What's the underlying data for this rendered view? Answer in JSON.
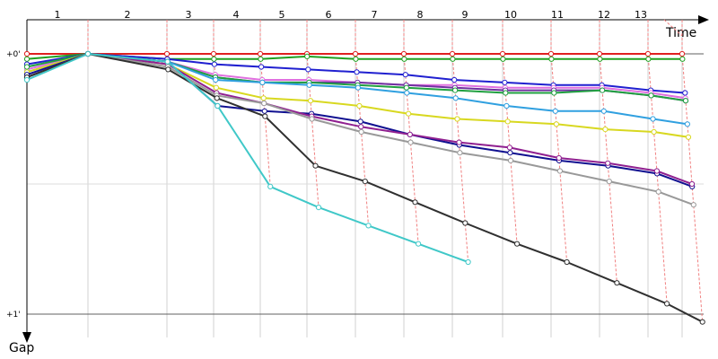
{
  "chart_data": {
    "type": "line",
    "title": "",
    "xlabel": "Time",
    "ylabel": "Gap",
    "lap_labels": [
      "1",
      "2",
      "3",
      "4",
      "5",
      "6",
      "7",
      "8",
      "9",
      "10",
      "11",
      "12",
      "13"
    ],
    "y_tick_labels": [
      "+0'",
      "+1'"
    ],
    "ylim": [
      0,
      1.035
    ],
    "grid": true,
    "laps": [
      0,
      1,
      2,
      3,
      4,
      5,
      6,
      7,
      8,
      9,
      10,
      11,
      12,
      13
    ],
    "series": [
      {
        "color": "#e02020",
        "values": [
          0.0,
          0.0,
          0.0,
          0.0,
          0.0,
          0.0,
          0.0,
          0.0,
          0.0,
          0.0,
          0.0,
          0.0,
          0.0,
          0.0
        ]
      },
      {
        "color": "#20a020",
        "values": [
          0.02,
          0.0,
          0.02,
          0.02,
          0.02,
          0.01,
          0.02,
          0.02,
          0.02,
          0.02,
          0.02,
          0.02,
          0.02,
          0.02
        ]
      },
      {
        "color": "#2020d0",
        "values": [
          0.04,
          0.0,
          0.02,
          0.04,
          0.05,
          0.06,
          0.07,
          0.08,
          0.1,
          0.11,
          0.12,
          0.12,
          0.14,
          0.15
        ]
      },
      {
        "color": "#e070e0",
        "values": [
          0.06,
          0.0,
          0.03,
          0.08,
          0.1,
          0.1,
          0.11,
          0.12,
          0.12,
          0.13,
          0.13,
          0.13,
          0.15,
          0.17
        ]
      },
      {
        "color": "#7030a0",
        "values": [
          0.09,
          0.0,
          0.03,
          0.09,
          0.11,
          0.11,
          0.11,
          0.12,
          0.13,
          0.14,
          0.14,
          0.14,
          0.16,
          0.18
        ]
      },
      {
        "color": "#20a040",
        "values": [
          0.05,
          0.0,
          0.03,
          0.09,
          0.11,
          0.11,
          0.12,
          0.13,
          0.14,
          0.15,
          0.15,
          0.14,
          0.16,
          0.18
        ]
      },
      {
        "color": "#30a0e0",
        "values": [
          0.07,
          0.0,
          0.03,
          0.1,
          0.11,
          0.12,
          0.13,
          0.15,
          0.17,
          0.2,
          0.22,
          0.22,
          0.25,
          0.27
        ]
      },
      {
        "color": "#d8d820",
        "values": [
          0.07,
          0.0,
          0.04,
          0.13,
          0.17,
          0.18,
          0.2,
          0.23,
          0.25,
          0.26,
          0.27,
          0.29,
          0.3,
          0.32
        ]
      },
      {
        "color": "#101090",
        "values": [
          0.08,
          0.0,
          0.03,
          0.2,
          0.22,
          0.23,
          0.26,
          0.31,
          0.35,
          0.38,
          0.41,
          0.43,
          0.46,
          0.51
        ]
      },
      {
        "color": "#902090",
        "values": [
          0.09,
          0.0,
          0.04,
          0.15,
          0.19,
          0.24,
          0.28,
          0.31,
          0.34,
          0.36,
          0.4,
          0.42,
          0.45,
          0.5
        ]
      },
      {
        "color": "#999999",
        "values": [
          0.09,
          0.0,
          0.05,
          0.16,
          0.19,
          0.25,
          0.3,
          0.34,
          0.38,
          0.41,
          0.45,
          0.49,
          0.53,
          0.58
        ]
      },
      {
        "color": "#303030",
        "values": [
          0.09,
          0.0,
          0.06,
          0.17,
          0.24,
          0.43,
          0.49,
          0.57,
          0.65,
          0.73,
          0.8,
          0.88,
          0.96,
          1.03
        ]
      },
      {
        "color": "#40c8c8",
        "values": [
          0.1,
          0.0,
          0.03,
          0.2,
          0.51,
          0.59,
          0.66,
          0.73,
          0.8
        ]
      }
    ]
  }
}
